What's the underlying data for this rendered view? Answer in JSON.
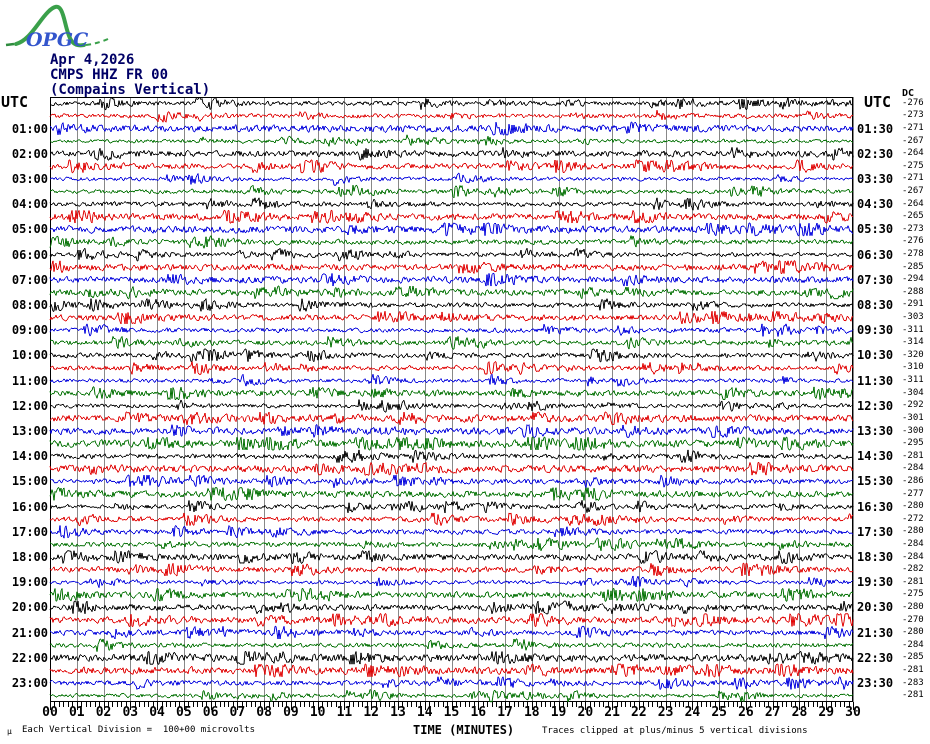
{
  "logo": {
    "text": "OPGC"
  },
  "header": {
    "date": "Apr 4,2026",
    "station": "CMPS HHZ FR 00",
    "station_name": "(Compains Vertical)"
  },
  "labels": {
    "utc_left": "UTC",
    "utc_right": "UTC",
    "dc_header": "DC"
  },
  "footer": {
    "mu": "µ",
    "division_text": "Each Vertical Division =  100+00 microvolts",
    "xaxis_title": "TIME (MINUTES)",
    "clip_note": "Traces clipped at plus/minus 5 vertical divisions"
  },
  "colors": {
    "black": "#000000",
    "red": "#e00000",
    "blue": "#0000dd",
    "green": "#007000",
    "grid": "#888888",
    "title": "#000066"
  },
  "chart_data": {
    "type": "line",
    "title": "CMPS HHZ FR 00 (Compains Vertical) Apr 4,2026 — 24h helicorder, 30 minutes per row",
    "xlabel": "TIME (MINUTES)",
    "x_ticks": [
      "00",
      "01",
      "02",
      "03",
      "04",
      "05",
      "06",
      "07",
      "08",
      "09",
      "10",
      "11",
      "12",
      "13",
      "14",
      "15",
      "16",
      "17",
      "18",
      "19",
      "20",
      "21",
      "22",
      "23",
      "24",
      "25",
      "26",
      "27",
      "28",
      "29",
      "30"
    ],
    "minutes_per_row": 30,
    "rows": 48,
    "color_cycle": [
      "black",
      "red",
      "blue",
      "green"
    ],
    "left_time_labels": [
      "01:00",
      "02:00",
      "03:00",
      "04:00",
      "05:00",
      "06:00",
      "07:00",
      "08:00",
      "09:00",
      "10:00",
      "11:00",
      "12:00",
      "13:00",
      "14:00",
      "15:00",
      "16:00",
      "17:00",
      "18:00",
      "19:00",
      "20:00",
      "21:00",
      "22:00",
      "23:00"
    ],
    "right_time_labels": [
      "01:30",
      "02:30",
      "03:30",
      "04:30",
      "05:30",
      "06:30",
      "07:30",
      "08:30",
      "09:30",
      "10:30",
      "11:30",
      "12:30",
      "13:30",
      "14:30",
      "15:30",
      "16:30",
      "17:30",
      "18:30",
      "19:30",
      "20:30",
      "21:30",
      "22:30",
      "23:30"
    ],
    "traces": [
      {
        "start": "00:00",
        "end": "00:30",
        "color": "black",
        "dc": -276
      },
      {
        "start": "00:30",
        "end": "01:00",
        "color": "red",
        "dc": -273
      },
      {
        "start": "01:00",
        "end": "01:30",
        "color": "blue",
        "dc": -271
      },
      {
        "start": "01:30",
        "end": "02:00",
        "color": "green",
        "dc": -267
      },
      {
        "start": "02:00",
        "end": "02:30",
        "color": "black",
        "dc": -264
      },
      {
        "start": "02:30",
        "end": "03:00",
        "color": "red",
        "dc": -275
      },
      {
        "start": "03:00",
        "end": "03:30",
        "color": "blue",
        "dc": -271
      },
      {
        "start": "03:30",
        "end": "04:00",
        "color": "green",
        "dc": -267
      },
      {
        "start": "04:00",
        "end": "04:30",
        "color": "black",
        "dc": -264
      },
      {
        "start": "04:30",
        "end": "05:00",
        "color": "red",
        "dc": -265
      },
      {
        "start": "05:00",
        "end": "05:30",
        "color": "blue",
        "dc": -273
      },
      {
        "start": "05:30",
        "end": "06:00",
        "color": "green",
        "dc": -276
      },
      {
        "start": "06:00",
        "end": "06:30",
        "color": "black",
        "dc": -278
      },
      {
        "start": "06:30",
        "end": "07:00",
        "color": "red",
        "dc": -285
      },
      {
        "start": "07:00",
        "end": "07:30",
        "color": "blue",
        "dc": -294
      },
      {
        "start": "07:30",
        "end": "08:00",
        "color": "green",
        "dc": -288
      },
      {
        "start": "08:00",
        "end": "08:30",
        "color": "black",
        "dc": -291
      },
      {
        "start": "08:30",
        "end": "09:00",
        "color": "red",
        "dc": -303
      },
      {
        "start": "09:00",
        "end": "09:30",
        "color": "blue",
        "dc": -311
      },
      {
        "start": "09:30",
        "end": "10:00",
        "color": "green",
        "dc": -314
      },
      {
        "start": "10:00",
        "end": "10:30",
        "color": "black",
        "dc": -320
      },
      {
        "start": "10:30",
        "end": "11:00",
        "color": "red",
        "dc": -310
      },
      {
        "start": "11:00",
        "end": "11:30",
        "color": "blue",
        "dc": -311
      },
      {
        "start": "11:30",
        "end": "12:00",
        "color": "green",
        "dc": -304
      },
      {
        "start": "12:00",
        "end": "12:30",
        "color": "black",
        "dc": -292
      },
      {
        "start": "12:30",
        "end": "13:00",
        "color": "red",
        "dc": -301
      },
      {
        "start": "13:00",
        "end": "13:30",
        "color": "blue",
        "dc": -300
      },
      {
        "start": "13:30",
        "end": "14:00",
        "color": "green",
        "dc": -295
      },
      {
        "start": "14:00",
        "end": "14:30",
        "color": "black",
        "dc": -281
      },
      {
        "start": "14:30",
        "end": "15:00",
        "color": "red",
        "dc": -284
      },
      {
        "start": "15:00",
        "end": "15:30",
        "color": "blue",
        "dc": -286
      },
      {
        "start": "15:30",
        "end": "16:00",
        "color": "green",
        "dc": -277
      },
      {
        "start": "16:00",
        "end": "16:30",
        "color": "black",
        "dc": -280
      },
      {
        "start": "16:30",
        "end": "17:00",
        "color": "red",
        "dc": -272
      },
      {
        "start": "17:00",
        "end": "17:30",
        "color": "blue",
        "dc": -280
      },
      {
        "start": "17:30",
        "end": "18:00",
        "color": "green",
        "dc": -284
      },
      {
        "start": "18:00",
        "end": "18:30",
        "color": "black",
        "dc": -284
      },
      {
        "start": "18:30",
        "end": "19:00",
        "color": "red",
        "dc": -282
      },
      {
        "start": "19:00",
        "end": "19:30",
        "color": "blue",
        "dc": -281
      },
      {
        "start": "19:30",
        "end": "20:00",
        "color": "green",
        "dc": -275
      },
      {
        "start": "20:00",
        "end": "20:30",
        "color": "black",
        "dc": -280
      },
      {
        "start": "20:30",
        "end": "21:00",
        "color": "red",
        "dc": -270
      },
      {
        "start": "21:00",
        "end": "21:30",
        "color": "blue",
        "dc": -280
      },
      {
        "start": "21:30",
        "end": "22:00",
        "color": "green",
        "dc": -284
      },
      {
        "start": "22:00",
        "end": "22:30",
        "color": "black",
        "dc": -285
      },
      {
        "start": "22:30",
        "end": "23:00",
        "color": "red",
        "dc": -281
      },
      {
        "start": "23:00",
        "end": "23:30",
        "color": "blue",
        "dc": -283
      },
      {
        "start": "23:30",
        "end": "24:00",
        "color": "green",
        "dc": -281
      }
    ]
  }
}
